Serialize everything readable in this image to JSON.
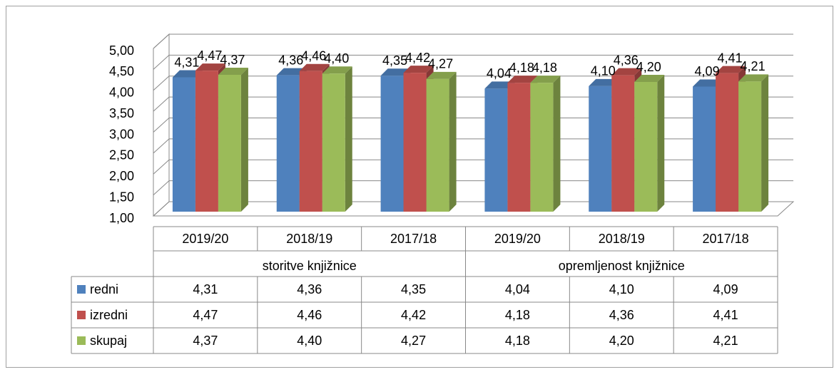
{
  "chart_data": {
    "type": "bar3d",
    "categories": [
      "2019/20",
      "2018/19",
      "2017/18",
      "2019/20",
      "2018/19",
      "2017/18"
    ],
    "category_groups": [
      "storitve knjižnice",
      "opremljenost knjižnice"
    ],
    "series": [
      {
        "name": "redni",
        "color": "#4f81bd",
        "values": [
          4.31,
          4.36,
          4.35,
          4.04,
          4.1,
          4.09
        ],
        "value_labels": [
          "4,31",
          "4,36",
          "4,35",
          "4,04",
          "4,10",
          "4,09"
        ]
      },
      {
        "name": "izredni",
        "color": "#c0504d",
        "values": [
          4.47,
          4.46,
          4.42,
          4.18,
          4.36,
          4.41
        ],
        "value_labels": [
          "4,47",
          "4,46",
          "4,42",
          "4,18",
          "4,36",
          "4,41"
        ]
      },
      {
        "name": "skupaj",
        "color": "#9bbb59",
        "values": [
          4.37,
          4.4,
          4.27,
          4.18,
          4.2,
          4.21
        ],
        "value_labels": [
          "4,37",
          "4,40",
          "4,27",
          "4,18",
          "4,20",
          "4,21"
        ]
      }
    ],
    "ylim": [
      1,
      5
    ],
    "yticks": [
      {
        "value": 1,
        "label": "1,00"
      },
      {
        "value": 1.5,
        "label": "1,50"
      },
      {
        "value": 2,
        "label": "2,00"
      },
      {
        "value": 2.5,
        "label": "2,50"
      },
      {
        "value": 3,
        "label": "3,00"
      },
      {
        "value": 3.5,
        "label": "3,50"
      },
      {
        "value": 4,
        "label": "4,00"
      },
      {
        "value": 4.5,
        "label": "4,50"
      },
      {
        "value": 5,
        "label": "5,00"
      }
    ],
    "grid": true,
    "data_table": true
  }
}
